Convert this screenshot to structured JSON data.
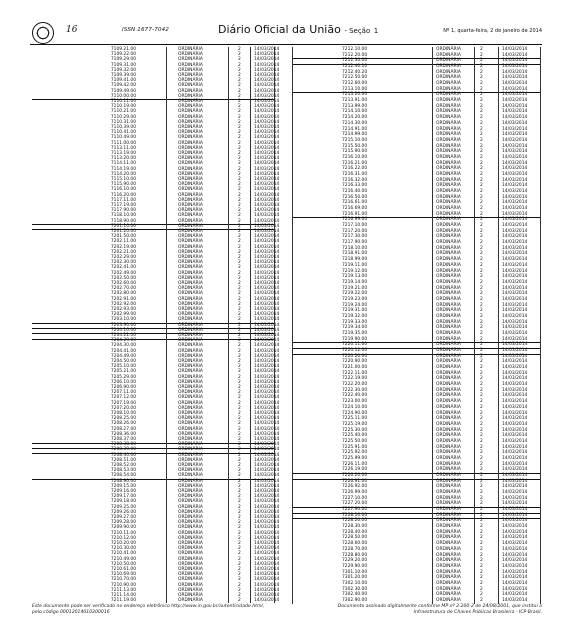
{
  "header": {
    "page_number": "16",
    "issn": "ISSN 1677-7042",
    "journal_title": "Diário Oficial da União",
    "section_label": "- Seção",
    "section_number": "1",
    "edition": "Nº 1, quarta-feira, 2 de janeiro de 2014"
  },
  "left_table": {
    "codes": [
      "7109.21.00",
      "7109.22.00",
      "7109.29.00",
      "7109.31.00",
      "7109.32.00",
      "7109.39.00",
      "7109.41.00",
      "7109.42.00",
      "7109.49.00",
      "7110.00.00",
      "7110.11.00",
      "7110.19.00",
      "7110.21.00",
      "7110.29.00",
      "7110.31.00",
      "7110.39.00",
      "7110.41.00",
      "7110.49.00",
      "7111.00.00",
      "7113.11.00",
      "7113.19.00",
      "7113.20.00",
      "7114.11.00",
      "7114.19.00",
      "7114.20.00",
      "7115.10.00",
      "7115.90.00",
      "7116.10.00",
      "7116.20.00",
      "7117.11.00",
      "7117.19.00",
      "7117.90.00",
      "7118.10.00",
      "7118.90.00",
      "7201.10.00",
      "7201.20.00",
      "7201.50.00",
      "7202.11.00",
      "7202.19.00",
      "7202.21.00",
      "7202.29.00",
      "7202.30.00",
      "7202.41.00",
      "7202.49.00",
      "7202.50.00",
      "7202.60.00",
      "7202.70.00",
      "7202.80.00",
      "7202.91.00",
      "7202.92.00",
      "7202.93.00",
      "7202.99.00",
      "7203.10.00",
      "7203.90.00",
      "7204.10.00",
      "7204.21.00",
      "7204.29.00",
      "7204.30.00",
      "7204.41.00",
      "7204.49.00",
      "7204.50.00",
      "7205.10.00",
      "7205.21.00",
      "7205.29.00",
      "7206.10.00",
      "7206.90.00",
      "7207.11.00",
      "7207.12.00",
      "7207.19.00",
      "7207.20.00",
      "7208.10.00",
      "7208.25.00",
      "7208.26.00",
      "7208.27.00",
      "7208.36.00",
      "7208.37.00",
      "7208.38.00",
      "7208.39.00",
      "7208.40.00",
      "7208.51.00",
      "7208.52.00",
      "7208.53.00",
      "7208.54.00",
      "7208.90.00",
      "7209.15.00",
      "7209.16.00",
      "7209.17.00",
      "7209.18.00",
      "7209.25.00",
      "7209.26.00",
      "7209.27.00",
      "7209.28.00",
      "7209.90.00",
      "7210.11.00",
      "7210.12.00",
      "7210.20.00",
      "7210.30.00",
      "7210.41.00",
      "7210.49.00",
      "7210.50.00",
      "7210.61.00",
      "7210.69.00",
      "7210.70.00",
      "7210.90.00",
      "7211.13.00",
      "7211.14.00",
      "7211.19.00"
    ],
    "regime": "ORDINÁRIA",
    "aliquot": "2",
    "date": "14/03/2014"
  },
  "right_table": {
    "codes": [
      "7212.10.00",
      "7212.20.00",
      "7212.30.00",
      "7212.40.10",
      "7212.40.20",
      "7212.50.00",
      "7212.60.00",
      "7213.10.00",
      "7213.20.00",
      "7213.91.00",
      "7213.99.00",
      "7214.10.00",
      "7214.20.00",
      "7214.30.00",
      "7214.91.00",
      "7214.99.00",
      "7215.10.00",
      "7215.50.00",
      "7215.90.00",
      "7216.10.00",
      "7216.21.00",
      "7216.22.00",
      "7216.31.00",
      "7216.32.00",
      "7216.33.00",
      "7216.40.00",
      "7216.50.00",
      "7216.61.00",
      "7216.69.00",
      "7216.91.00",
      "7216.99.00",
      "7217.10.00",
      "7217.20.00",
      "7217.30.00",
      "7217.90.00",
      "7218.10.00",
      "7218.91.00",
      "7218.99.00",
      "7219.11.00",
      "7219.12.00",
      "7219.13.00",
      "7219.14.00",
      "7219.21.00",
      "7219.22.00",
      "7219.23.00",
      "7219.24.00",
      "7219.31.00",
      "7219.32.00",
      "7219.33.00",
      "7219.34.00",
      "7219.35.00",
      "7219.90.00",
      "7220.11.00",
      "7220.12.00",
      "7220.20.00",
      "7220.90.00",
      "7221.00.00",
      "7222.11.00",
      "7222.19.00",
      "7222.20.00",
      "7222.30.00",
      "7222.40.00",
      "7223.00.00",
      "7224.10.00",
      "7224.90.00",
      "7225.11.00",
      "7225.19.00",
      "7225.30.00",
      "7225.40.00",
      "7225.50.00",
      "7225.91.00",
      "7225.92.00",
      "7225.99.00",
      "7226.11.00",
      "7226.19.00",
      "7226.20.00",
      "7226.91.00",
      "7226.92.00",
      "7226.99.00",
      "7227.10.00",
      "7227.20.00",
      "7227.90.00",
      "7228.10.00",
      "7228.20.00",
      "7228.30.00",
      "7228.40.00",
      "7228.50.00",
      "7228.60.00",
      "7228.70.00",
      "7228.80.00",
      "7229.20.00",
      "7229.90.00",
      "7301.10.00",
      "7301.20.00",
      "7302.10.00",
      "7302.30.00",
      "7302.40.00",
      "7302.90.00"
    ],
    "regime": "ORDINÁRIA",
    "aliquot": "2",
    "date": "14/03/2014"
  },
  "footer": {
    "left_line1": "Este documento pode ser verificado no endereço eletrônico http://www.in.gov.br/autenticidade.html,",
    "left_line2": "pelo código 00012014010200016",
    "right_line1": "Documento assinado digitalmente conforme MP nº 2.200-2 de 24/08/2001, que institui a",
    "right_line2": "Infraestrutura de Chaves Públicas Brasileira - ICP-Brasil."
  }
}
